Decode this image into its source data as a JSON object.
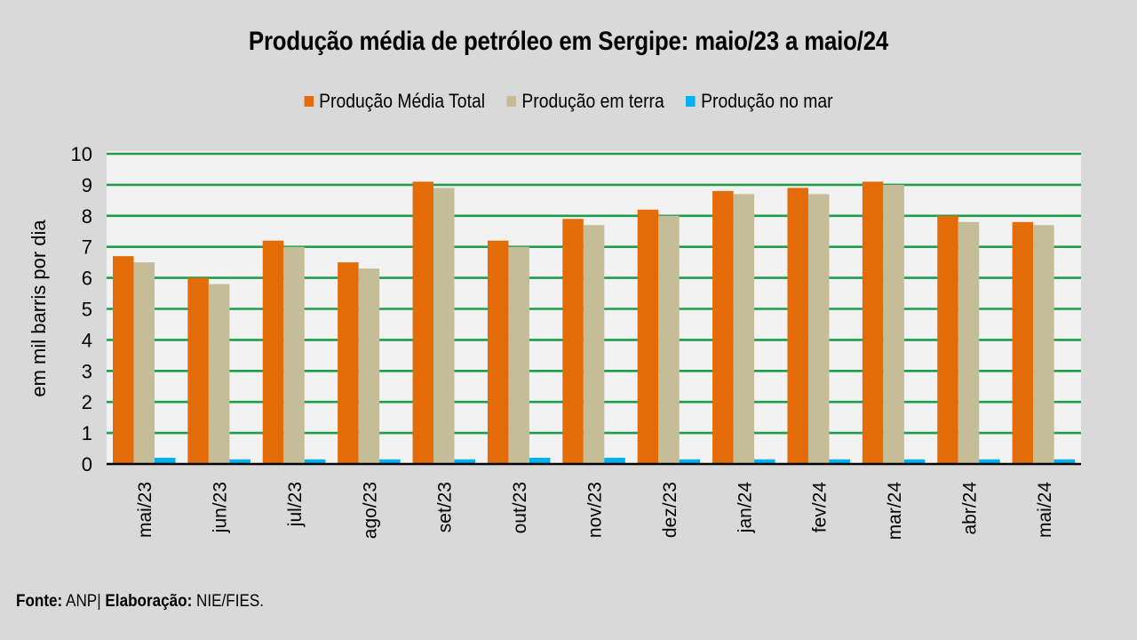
{
  "chart_data": {
    "type": "bar",
    "title": "Produção média de petróleo em Sergipe: maio/23 a maio/24",
    "xlabel": "",
    "ylabel": "em mil barris por dia",
    "ylim": [
      0,
      10
    ],
    "yticks": [
      0,
      1,
      2,
      3,
      4,
      5,
      6,
      7,
      8,
      9,
      10
    ],
    "grid": true,
    "legend_position": "top",
    "categories": [
      "mai/23",
      "jun/23",
      "jul/23",
      "ago/23",
      "set/23",
      "out/23",
      "nov/23",
      "dez/23",
      "jan/24",
      "fev/24",
      "mar/24",
      "abr/24",
      "mai/24"
    ],
    "series": [
      {
        "name": "Produção Média Total",
        "color": "#e36c09",
        "values": [
          6.7,
          6.0,
          7.2,
          6.5,
          9.1,
          7.2,
          7.9,
          8.2,
          8.8,
          8.9,
          9.1,
          8.0,
          7.8
        ]
      },
      {
        "name": "Produção em terra",
        "color": "#c4bd97",
        "values": [
          6.5,
          5.8,
          7.0,
          6.3,
          8.9,
          7.0,
          7.7,
          8.0,
          8.7,
          8.7,
          9.0,
          7.8,
          7.7
        ]
      },
      {
        "name": "Produção no mar",
        "color": "#00b0f0",
        "values": [
          0.2,
          0.15,
          0.15,
          0.15,
          0.15,
          0.2,
          0.2,
          0.15,
          0.15,
          0.15,
          0.15,
          0.15,
          0.15
        ]
      }
    ]
  },
  "colors": {
    "background": "#d9d9d9",
    "plot_background": "#f2f2f2",
    "gridline": "#1e9e4a",
    "axis": "#000000"
  },
  "footer": {
    "source_label": "Fonte:",
    "source_value": " ANP| ",
    "credit_label": "Elaboração:",
    "credit_value": " NIE/FIES."
  }
}
